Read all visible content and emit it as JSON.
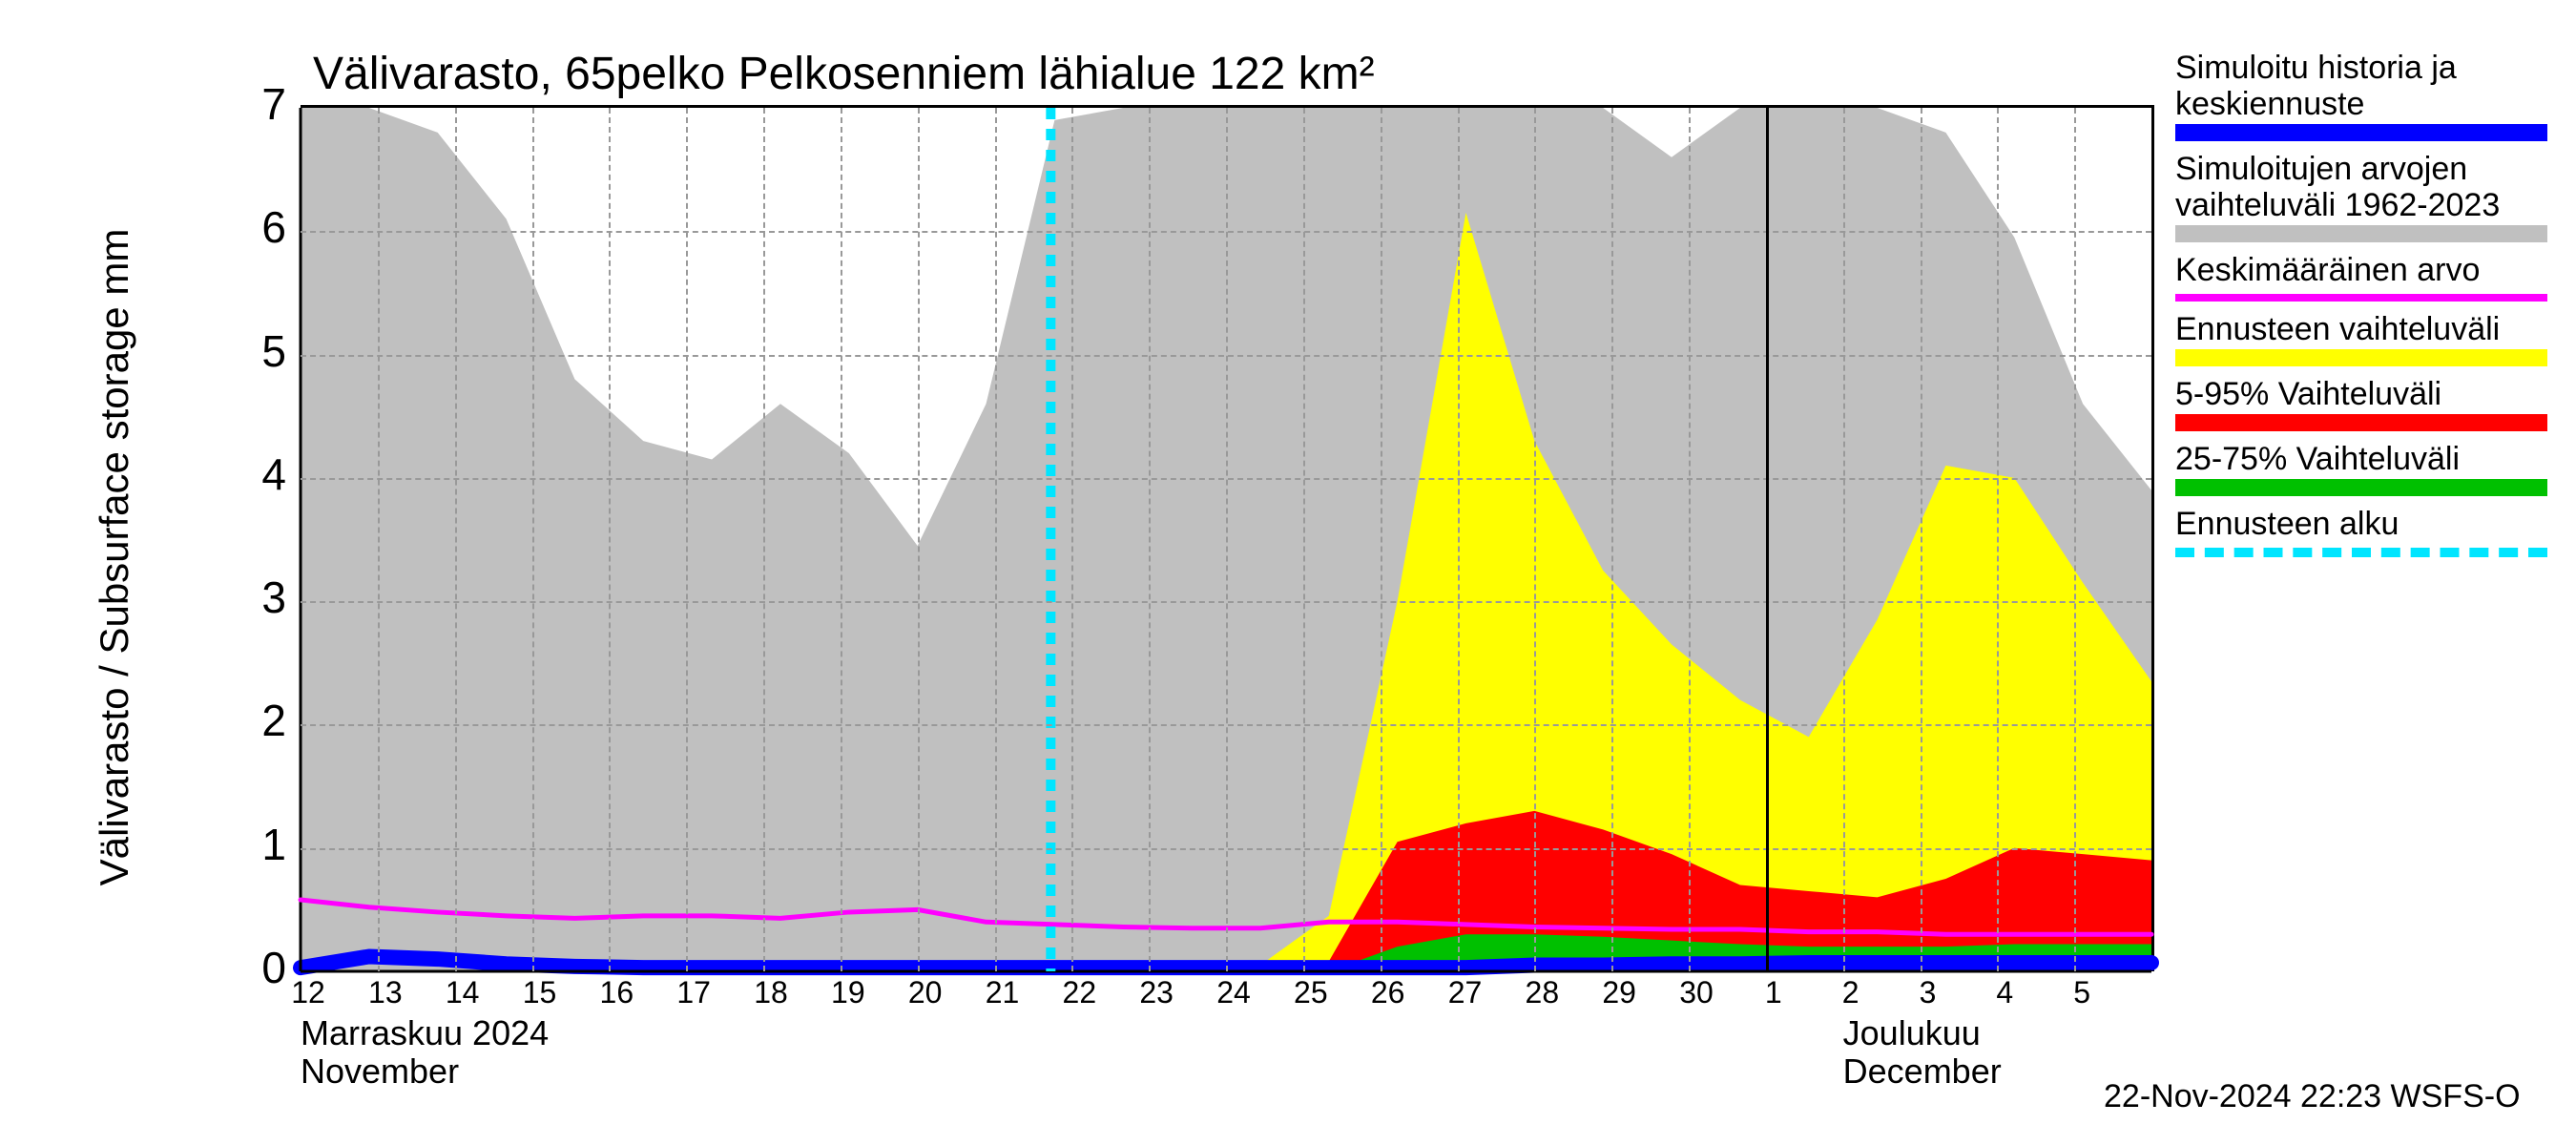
{
  "chart": {
    "type": "area-line",
    "title": "Välivarasto, 65pelko Pelkosenniem lähialue 122 km²",
    "y_axis_label": "Välivarasto / Subsurface storage  mm",
    "ylim": [
      0,
      7
    ],
    "yticks": [
      0,
      1,
      2,
      3,
      4,
      5,
      6,
      7
    ],
    "background_color": "#ffffff",
    "grid_color": "#999999",
    "axis_color": "#000000",
    "title_fontsize": 48,
    "axis_label_fontsize": 42,
    "tick_fontsize": 46,
    "xtick_fontsize": 32,
    "x_days": [
      "12",
      "13",
      "14",
      "15",
      "16",
      "17",
      "18",
      "19",
      "20",
      "21",
      "22",
      "23",
      "24",
      "25",
      "26",
      "27",
      "28",
      "29",
      "30",
      "1",
      "2",
      "3",
      "4",
      "5"
    ],
    "month_labels": {
      "left": {
        "line1": "Marraskuu 2024",
        "line2": "November",
        "x_day": "12"
      },
      "right": {
        "line1": "Joulukuu",
        "line2": "December",
        "x_day": "2"
      }
    },
    "month_boundary_day_index": 19,
    "forecast_start_day": "22",
    "series": {
      "historic_range": {
        "color": "#c0c0c0",
        "upper": [
          7.0,
          7.0,
          6.8,
          6.1,
          4.8,
          4.3,
          4.15,
          4.6,
          4.2,
          3.45,
          4.6,
          6.9,
          7.0,
          7.0,
          7.0,
          7.0,
          7.0,
          7.0,
          7.0,
          7.0,
          6.6,
          7.0,
          7.0,
          7.0,
          6.8,
          5.95,
          4.6,
          3.9
        ],
        "lower": [
          0,
          0,
          0,
          0,
          0,
          0,
          0,
          0,
          0,
          0,
          0,
          0,
          0,
          0,
          0,
          0,
          0,
          0,
          0,
          0,
          0,
          0,
          0,
          0,
          0,
          0,
          0,
          0
        ]
      },
      "forecast_full": {
        "color": "#ffff00",
        "upper": [
          0,
          0,
          0,
          0,
          0,
          0,
          0,
          0,
          0,
          0,
          0,
          0,
          0,
          0,
          0.05,
          0.45,
          3.0,
          6.15,
          4.3,
          3.25,
          2.65,
          2.2,
          1.9,
          2.85,
          4.1,
          4.0,
          3.15,
          2.35
        ],
        "lower": [
          0,
          0,
          0,
          0,
          0,
          0,
          0,
          0,
          0,
          0,
          0,
          0,
          0,
          0,
          0,
          0,
          0,
          0,
          0,
          0,
          0,
          0,
          0,
          0,
          0,
          0,
          0,
          0
        ]
      },
      "forecast_5_95": {
        "color": "#ff0000",
        "upper": [
          0,
          0,
          0,
          0,
          0,
          0,
          0,
          0,
          0,
          0,
          0,
          0,
          0,
          0,
          0,
          0.08,
          1.05,
          1.2,
          1.3,
          1.15,
          0.95,
          0.7,
          0.65,
          0.6,
          0.75,
          1.0,
          0.95,
          0.9
        ],
        "lower": [
          0,
          0,
          0,
          0,
          0,
          0,
          0,
          0,
          0,
          0,
          0,
          0,
          0,
          0,
          0,
          0,
          0,
          0,
          0,
          0,
          0,
          0,
          0,
          0,
          0,
          0,
          0,
          0
        ]
      },
      "forecast_25_75": {
        "color": "#00c000",
        "upper": [
          0,
          0,
          0,
          0,
          0,
          0,
          0,
          0,
          0,
          0,
          0,
          0,
          0,
          0,
          0,
          0,
          0.2,
          0.3,
          0.3,
          0.28,
          0.25,
          0.22,
          0.2,
          0.2,
          0.2,
          0.22,
          0.22,
          0.22
        ],
        "lower": [
          0,
          0,
          0,
          0,
          0,
          0,
          0,
          0,
          0,
          0,
          0,
          0,
          0,
          0,
          0,
          0,
          0,
          0,
          0,
          0,
          0,
          0,
          0,
          0,
          0,
          0,
          0,
          0
        ]
      },
      "mean_history": {
        "color": "#ff00ff",
        "width": 5,
        "values": [
          0.58,
          0.52,
          0.48,
          0.45,
          0.43,
          0.45,
          0.45,
          0.43,
          0.48,
          0.5,
          0.4,
          0.38,
          0.36,
          0.35,
          0.35,
          0.4,
          0.4,
          0.38,
          0.36,
          0.35,
          0.34,
          0.34,
          0.32,
          0.32,
          0.3,
          0.3,
          0.3,
          0.3
        ]
      },
      "sim_blue": {
        "color": "#0000ff",
        "width": 16,
        "values": [
          0.03,
          0.12,
          0.1,
          0.06,
          0.04,
          0.03,
          0.03,
          0.03,
          0.03,
          0.03,
          0.03,
          0.03,
          0.03,
          0.03,
          0.03,
          0.03,
          0.03,
          0.03,
          0.05,
          0.05,
          0.06,
          0.06,
          0.07,
          0.07,
          0.07,
          0.07,
          0.07,
          0.07
        ]
      }
    },
    "forecast_line": {
      "color": "#00e5ff",
      "dash": "12,10",
      "width": 10,
      "x_day": "22"
    }
  },
  "legend": {
    "items": [
      {
        "label1": "Simuloitu historia ja",
        "label2": "keskiennuste",
        "type": "swatch",
        "color": "#0000ff"
      },
      {
        "label1": "Simuloitujen arvojen",
        "label2": "vaihteluväli 1962-2023",
        "type": "swatch",
        "color": "#c0c0c0"
      },
      {
        "label1": "Keskimääräinen arvo",
        "label2": "",
        "type": "line",
        "color": "#ff00ff"
      },
      {
        "label1": "Ennusteen vaihteluväli",
        "label2": "",
        "type": "swatch",
        "color": "#ffff00"
      },
      {
        "label1": "5-95% Vaihteluväli",
        "label2": "",
        "type": "swatch",
        "color": "#ff0000"
      },
      {
        "label1": "25-75% Vaihteluväli",
        "label2": "",
        "type": "swatch",
        "color": "#00c000"
      },
      {
        "label1": "Ennusteen alku",
        "label2": "",
        "type": "dashed",
        "color": "#00e5ff"
      }
    ]
  },
  "timestamp": "22-Nov-2024 22:23 WSFS-O"
}
